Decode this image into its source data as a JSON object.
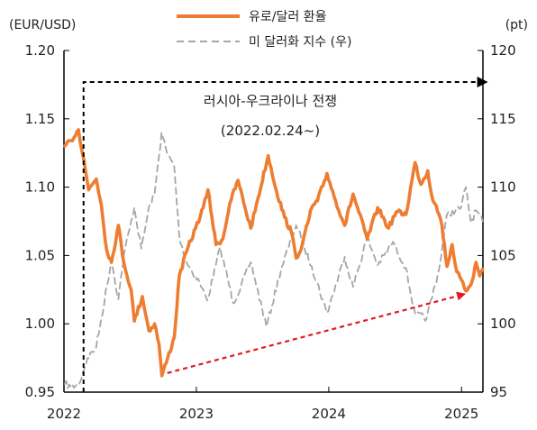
{
  "chart_data": {
    "type": "line",
    "title": "",
    "left_axis": {
      "unit_label": "(EUR/USD)",
      "ylim": [
        0.95,
        1.2
      ],
      "ticks": [
        "0.95",
        "1.00",
        "1.05",
        "1.10",
        "1.15",
        "1.20"
      ]
    },
    "right_axis": {
      "unit_label": "(pt)",
      "ylim": [
        95,
        120
      ],
      "ticks": [
        "95",
        "100",
        "105",
        "110",
        "115",
        "120"
      ]
    },
    "x_axis": {
      "xlim": [
        "2022-01-01",
        "2025-03-01"
      ],
      "ticks": [
        "2022",
        "2023",
        "2024",
        "2025"
      ]
    },
    "legend": {
      "placement": "top-center"
    },
    "series": [
      {
        "name": "유로/달러 환율",
        "axis": "left",
        "color": "#ED7D31",
        "style": "solid",
        "points": [
          [
            "2022-01-03",
            1.13
          ],
          [
            "2022-01-20",
            1.134
          ],
          [
            "2022-02-10",
            1.142
          ],
          [
            "2022-02-25",
            1.12
          ],
          [
            "2022-03-10",
            1.098
          ],
          [
            "2022-03-31",
            1.106
          ],
          [
            "2022-04-14",
            1.087
          ],
          [
            "2022-04-28",
            1.055
          ],
          [
            "2022-05-12",
            1.045
          ],
          [
            "2022-05-31",
            1.072
          ],
          [
            "2022-06-15",
            1.045
          ],
          [
            "2022-07-05",
            1.025
          ],
          [
            "2022-07-14",
            1.002
          ],
          [
            "2022-08-05",
            1.02
          ],
          [
            "2022-08-23",
            0.995
          ],
          [
            "2022-09-08",
            1.0
          ],
          [
            "2022-09-20",
            0.985
          ],
          [
            "2022-09-28",
            0.962
          ],
          [
            "2022-10-14",
            0.975
          ],
          [
            "2022-11-01",
            0.99
          ],
          [
            "2022-11-15",
            1.035
          ],
          [
            "2022-12-05",
            1.053
          ],
          [
            "2022-12-30",
            1.07
          ],
          [
            "2023-01-20",
            1.085
          ],
          [
            "2023-02-02",
            1.098
          ],
          [
            "2023-02-24",
            1.058
          ],
          [
            "2023-03-15",
            1.062
          ],
          [
            "2023-04-03",
            1.088
          ],
          [
            "2023-04-26",
            1.105
          ],
          [
            "2023-05-15",
            1.085
          ],
          [
            "2023-05-31",
            1.07
          ],
          [
            "2023-06-20",
            1.092
          ],
          [
            "2023-07-18",
            1.123
          ],
          [
            "2023-08-10",
            1.097
          ],
          [
            "2023-09-01",
            1.078
          ],
          [
            "2023-09-20",
            1.067
          ],
          [
            "2023-10-03",
            1.048
          ],
          [
            "2023-10-20",
            1.058
          ],
          [
            "2023-11-15",
            1.085
          ],
          [
            "2023-12-01",
            1.09
          ],
          [
            "2023-12-27",
            1.11
          ],
          [
            "2024-01-20",
            1.09
          ],
          [
            "2024-02-14",
            1.072
          ],
          [
            "2024-03-08",
            1.095
          ],
          [
            "2024-04-16",
            1.062
          ],
          [
            "2024-05-15",
            1.085
          ],
          [
            "2024-06-14",
            1.07
          ],
          [
            "2024-07-05",
            1.082
          ],
          [
            "2024-08-01",
            1.08
          ],
          [
            "2024-08-26",
            1.118
          ],
          [
            "2024-09-11",
            1.102
          ],
          [
            "2024-09-30",
            1.112
          ],
          [
            "2024-10-10",
            1.095
          ],
          [
            "2024-10-31",
            1.08
          ],
          [
            "2024-11-08",
            1.072
          ],
          [
            "2024-11-22",
            1.042
          ],
          [
            "2024-12-06",
            1.058
          ],
          [
            "2024-12-19",
            1.038
          ],
          [
            "2025-01-13",
            1.024
          ],
          [
            "2025-01-31",
            1.032
          ],
          [
            "2025-02-10",
            1.045
          ],
          [
            "2025-02-20",
            1.035
          ],
          [
            "2025-02-28",
            1.04
          ]
        ]
      },
      {
        "name": "미 달러화 지수 (우)",
        "axis": "right",
        "color": "#A6A6A6",
        "style": "dashed",
        "points": [
          [
            "2022-01-03",
            95.6
          ],
          [
            "2022-01-20",
            95.4
          ],
          [
            "2022-02-10",
            95.5
          ],
          [
            "2022-03-07",
            97.5
          ],
          [
            "2022-03-31",
            98.3
          ],
          [
            "2022-04-14",
            100.4
          ],
          [
            "2022-05-12",
            104.7
          ],
          [
            "2022-05-31",
            101.8
          ],
          [
            "2022-06-15",
            105.0
          ],
          [
            "2022-07-14",
            108.5
          ],
          [
            "2022-08-02",
            105.5
          ],
          [
            "2022-08-26",
            108.8
          ],
          [
            "2022-09-08",
            109.5
          ],
          [
            "2022-09-27",
            114.0
          ],
          [
            "2022-10-12",
            112.5
          ],
          [
            "2022-11-01",
            111.5
          ],
          [
            "2022-11-15",
            106.4
          ],
          [
            "2022-12-05",
            104.5
          ],
          [
            "2023-01-10",
            103.0
          ],
          [
            "2023-01-31",
            101.7
          ],
          [
            "2023-03-08",
            105.6
          ],
          [
            "2023-04-13",
            101.5
          ],
          [
            "2023-05-31",
            104.5
          ],
          [
            "2023-07-13",
            99.8
          ],
          [
            "2023-08-25",
            104.2
          ],
          [
            "2023-10-03",
            107.2
          ],
          [
            "2023-11-15",
            104.2
          ],
          [
            "2023-12-27",
            100.8
          ],
          [
            "2024-02-14",
            104.9
          ],
          [
            "2024-03-08",
            102.7
          ],
          [
            "2024-04-16",
            106.3
          ],
          [
            "2024-05-15",
            104.3
          ],
          [
            "2024-06-26",
            106.0
          ],
          [
            "2024-07-31",
            104.1
          ],
          [
            "2024-08-26",
            100.7
          ],
          [
            "2024-09-27",
            100.4
          ],
          [
            "2024-10-31",
            104.0
          ],
          [
            "2024-11-22",
            108.0
          ],
          [
            "2024-12-31",
            108.5
          ],
          [
            "2025-01-13",
            110.0
          ],
          [
            "2025-01-27",
            107.4
          ],
          [
            "2025-02-10",
            108.3
          ],
          [
            "2025-02-28",
            107.5
          ]
        ]
      }
    ],
    "annotations": [
      {
        "text": "러시아-우크라이나 전쟁",
        "type": "dashed-bracket-arrow",
        "from": "2022-02-24",
        "to": "2025-02-28"
      },
      {
        "text": "(2022.02.24~)"
      },
      {
        "text": "",
        "type": "dashed-trend-arrow",
        "from": [
          "2022-09-28",
          0.962
        ],
        "to": [
          "2025-01-13",
          1.022
        ],
        "color": "#E31A1C"
      }
    ]
  }
}
